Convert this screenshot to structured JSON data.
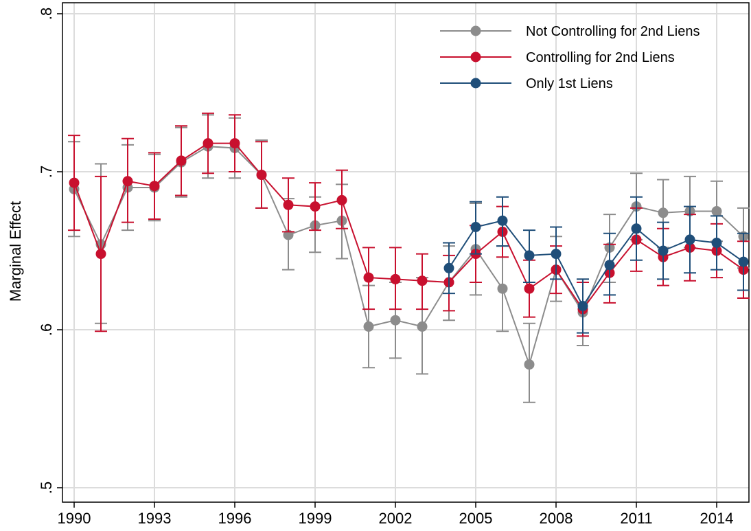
{
  "chart_data": {
    "type": "line",
    "title": "",
    "xlabel": "",
    "ylabel": "Marginal Effect",
    "xlim": [
      1990,
      2015
    ],
    "ylim": [
      0.5,
      0.8
    ],
    "x_ticks": [
      1990,
      1993,
      1996,
      1999,
      2002,
      2005,
      2008,
      2011,
      2014
    ],
    "x_tick_labels": [
      "1990",
      "1993",
      "1996",
      "1999",
      "2002",
      "2005",
      "2008",
      "2011",
      "2014"
    ],
    "y_ticks": [
      0.5,
      0.6,
      0.7,
      0.8
    ],
    "y_tick_labels": [
      ".5",
      ".6",
      ".7",
      ".8"
    ],
    "grid": true,
    "error_bars": true,
    "legend_position": "top-right",
    "series": [
      {
        "name": "Not Controlling for 2nd Liens",
        "color": "#8c8c8c",
        "x": [
          1990,
          1991,
          1992,
          1993,
          1994,
          1995,
          1996,
          1997,
          1998,
          1999,
          2000,
          2001,
          2002,
          2003,
          2004,
          2005,
          2006,
          2007,
          2008,
          2009,
          2010,
          2011,
          2012,
          2013,
          2014,
          2015
        ],
        "y": [
          0.689,
          0.654,
          0.69,
          0.69,
          0.706,
          0.716,
          0.715,
          0.698,
          0.66,
          0.666,
          0.669,
          0.602,
          0.606,
          0.602,
          0.63,
          0.651,
          0.626,
          0.578,
          0.638,
          0.611,
          0.652,
          0.678,
          0.674,
          0.675,
          0.675,
          0.659
        ],
        "lo": [
          0.659,
          0.604,
          0.663,
          0.669,
          0.684,
          0.696,
          0.696,
          0.677,
          0.638,
          0.649,
          0.645,
          0.576,
          0.582,
          0.572,
          0.606,
          0.622,
          0.599,
          0.554,
          0.618,
          0.59,
          0.63,
          0.657,
          0.652,
          0.652,
          0.656,
          0.639
        ],
        "hi": [
          0.719,
          0.705,
          0.717,
          0.711,
          0.728,
          0.736,
          0.734,
          0.72,
          0.683,
          0.684,
          0.692,
          0.628,
          0.63,
          0.633,
          0.653,
          0.68,
          0.653,
          0.604,
          0.659,
          0.632,
          0.673,
          0.699,
          0.695,
          0.697,
          0.694,
          0.677
        ]
      },
      {
        "name": "Controlling for 2nd Liens",
        "color": "#c8102e",
        "x": [
          1990,
          1991,
          1992,
          1993,
          1994,
          1995,
          1996,
          1997,
          1998,
          1999,
          2000,
          2001,
          2002,
          2003,
          2004,
          2005,
          2006,
          2007,
          2008,
          2009,
          2010,
          2011,
          2012,
          2013,
          2014,
          2015
        ],
        "y": [
          0.693,
          0.648,
          0.694,
          0.691,
          0.707,
          0.718,
          0.718,
          0.698,
          0.679,
          0.678,
          0.682,
          0.633,
          0.632,
          0.631,
          0.63,
          0.648,
          0.662,
          0.626,
          0.638,
          0.613,
          0.636,
          0.657,
          0.646,
          0.652,
          0.65,
          0.638
        ],
        "lo": [
          0.663,
          0.599,
          0.668,
          0.67,
          0.685,
          0.699,
          0.7,
          0.677,
          0.662,
          0.663,
          0.664,
          0.613,
          0.613,
          0.613,
          0.612,
          0.63,
          0.646,
          0.608,
          0.623,
          0.596,
          0.617,
          0.637,
          0.628,
          0.631,
          0.633,
          0.62
        ],
        "hi": [
          0.723,
          0.697,
          0.721,
          0.712,
          0.729,
          0.737,
          0.736,
          0.719,
          0.696,
          0.693,
          0.701,
          0.652,
          0.652,
          0.648,
          0.647,
          0.666,
          0.678,
          0.644,
          0.653,
          0.63,
          0.654,
          0.677,
          0.664,
          0.673,
          0.667,
          0.656
        ]
      },
      {
        "name": "Only 1st Liens",
        "color": "#1f4e79",
        "x": [
          2004,
          2005,
          2006,
          2007,
          2008,
          2009,
          2010,
          2011,
          2012,
          2013,
          2014,
          2015
        ],
        "y": [
          0.639,
          0.665,
          0.669,
          0.647,
          0.648,
          0.615,
          0.641,
          0.664,
          0.65,
          0.657,
          0.655,
          0.643
        ],
        "lo": [
          0.623,
          0.648,
          0.653,
          0.63,
          0.632,
          0.598,
          0.622,
          0.644,
          0.632,
          0.636,
          0.638,
          0.625
        ],
        "hi": [
          0.655,
          0.681,
          0.684,
          0.663,
          0.665,
          0.632,
          0.661,
          0.684,
          0.668,
          0.678,
          0.672,
          0.661
        ]
      }
    ]
  }
}
